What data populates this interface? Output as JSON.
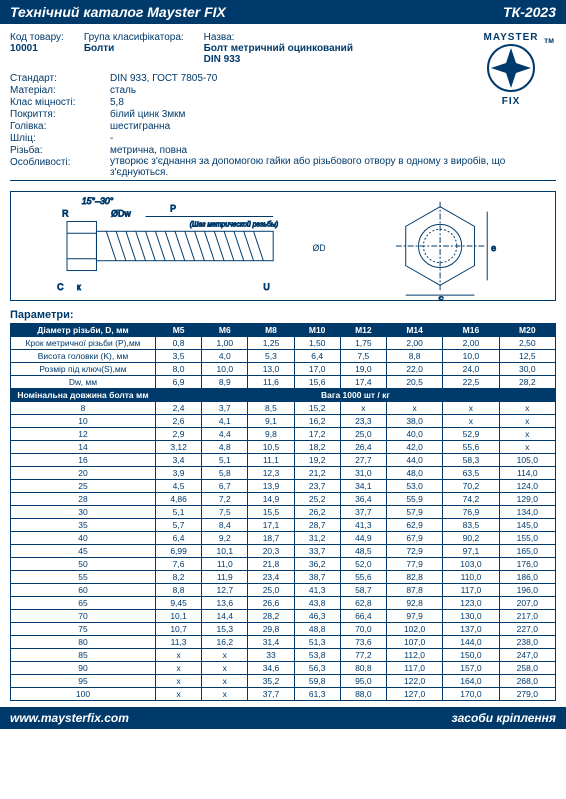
{
  "header": {
    "left": "Технічний каталог Mayster FIX",
    "right": "ТК-2023"
  },
  "info": {
    "code_label": "Код товару:",
    "code": "10001",
    "group_label": "Група класифікатора:",
    "group": "Болти",
    "name_label": "Назва:",
    "name1": "Болт метричний оцинкований",
    "name2": "DIN 933"
  },
  "specs": [
    {
      "label": "Стандарт:",
      "value": "DIN 933, ГОСТ 7805-70"
    },
    {
      "label": "Матеріал:",
      "value": "сталь"
    },
    {
      "label": "Клас міцності:",
      "value": "5,8"
    },
    {
      "label": "Покриття:",
      "value": "білий цинк 3мкм"
    },
    {
      "label": "Голівка:",
      "value": "шестигранна"
    },
    {
      "label": "Шліц:",
      "value": "-"
    },
    {
      "label": "Різьба:",
      "value": "метрична, повна"
    },
    {
      "label": "Особливості:",
      "value": "утворює з'єднання за допомогою гайки або різьбового отвору в одному з виробів, що з'єднуються."
    }
  ],
  "logo": {
    "top": "MAYSTER",
    "bottom": "FIX",
    "tm": "тм"
  },
  "diagram": {
    "angle": "15°–30°",
    "thread_note": "(Шаг метрической резьбы)"
  },
  "params_title": "Параметри:",
  "table": {
    "header": [
      "Діаметр різьби, D, мм",
      "M5",
      "M6",
      "M8",
      "M10",
      "M12",
      "M14",
      "M16",
      "M20"
    ],
    "param_rows": [
      [
        "Крок метричної різьби (P),мм",
        "0,8",
        "1,00",
        "1,25",
        "1,50",
        "1,75",
        "2,00",
        "2,00",
        "2,50"
      ],
      [
        "Висота головки (K), мм",
        "3,5",
        "4,0",
        "5,3",
        "6,4",
        "7,5",
        "8,8",
        "10,0",
        "12,5"
      ],
      [
        "Розмір під ключ(S),мм",
        "8,0",
        "10,0",
        "13,0",
        "17,0",
        "19,0",
        "22,0",
        "24,0",
        "30,0"
      ],
      [
        "Dw, мм",
        "6,9",
        "8,9",
        "11,6",
        "15,6",
        "17,4",
        "20,5",
        "22,5",
        "28,2"
      ]
    ],
    "weight_header": [
      "Номінальна довжина болта мм",
      "Вага 1000 шт / кг"
    ],
    "weight_rows": [
      [
        "8",
        "2,4",
        "3,7",
        "8,5",
        "15,2",
        "x",
        "x",
        "x",
        "x"
      ],
      [
        "10",
        "2,6",
        "4,1",
        "9,1",
        "16,2",
        "23,3",
        "38,0",
        "x",
        "x"
      ],
      [
        "12",
        "2,9",
        "4,4",
        "9,8",
        "17,2",
        "25,0",
        "40,0",
        "52,9",
        "x"
      ],
      [
        "14",
        "3,12",
        "4,8",
        "10,5",
        "18,2",
        "26,4",
        "42,0",
        "55,6",
        "x"
      ],
      [
        "16",
        "3,4",
        "5,1",
        "11,1",
        "19,2",
        "27,7",
        "44,0",
        "58,3",
        "105,0"
      ],
      [
        "20",
        "3,9",
        "5,8",
        "12,3",
        "21,2",
        "31,0",
        "48,0",
        "63,5",
        "114,0"
      ],
      [
        "25",
        "4,5",
        "6,7",
        "13,9",
        "23,7",
        "34,1",
        "53,0",
        "70,2",
        "124,0"
      ],
      [
        "28",
        "4,86",
        "7,2",
        "14,9",
        "25,2",
        "36,4",
        "55,9",
        "74,2",
        "129,0"
      ],
      [
        "30",
        "5,1",
        "7,5",
        "15,5",
        "26,2",
        "37,7",
        "57,9",
        "76,9",
        "134,0"
      ],
      [
        "35",
        "5,7",
        "8,4",
        "17,1",
        "28,7",
        "41,3",
        "62,9",
        "83,5",
        "145,0"
      ],
      [
        "40",
        "6,4",
        "9,2",
        "18,7",
        "31,2",
        "44,9",
        "67,9",
        "90,2",
        "155,0"
      ],
      [
        "45",
        "6,99",
        "10,1",
        "20,3",
        "33,7",
        "48,5",
        "72,9",
        "97,1",
        "165,0"
      ],
      [
        "50",
        "7,6",
        "11,0",
        "21,8",
        "36,2",
        "52,0",
        "77,9",
        "103,0",
        "176,0"
      ],
      [
        "55",
        "8,2",
        "11,9",
        "23,4",
        "38,7",
        "55,6",
        "82,8",
        "110,0",
        "186,0"
      ],
      [
        "60",
        "8,8",
        "12,7",
        "25,0",
        "41,3",
        "58,7",
        "87,8",
        "117,0",
        "196,0"
      ],
      [
        "65",
        "9,45",
        "13,6",
        "26,6",
        "43,8",
        "62,8",
        "92,8",
        "123,0",
        "207,0"
      ],
      [
        "70",
        "10,1",
        "14,4",
        "28,2",
        "46,3",
        "66,4",
        "97,9",
        "130,0",
        "217,0"
      ],
      [
        "75",
        "10,7",
        "15,3",
        "29,8",
        "48,8",
        "70,0",
        "102,0",
        "137,0",
        "227,0"
      ],
      [
        "80",
        "11,3",
        "16,2",
        "31,4",
        "51,3",
        "73,6",
        "107,0",
        "144,0",
        "238,0"
      ],
      [
        "85",
        "x",
        "x",
        "33",
        "53,8",
        "77,2",
        "112,0",
        "150,0",
        "247,0"
      ],
      [
        "90",
        "x",
        "x",
        "34,6",
        "56,3",
        "80,8",
        "117,0",
        "157,0",
        "258,0"
      ],
      [
        "95",
        "x",
        "x",
        "35,2",
        "59,8",
        "95,0",
        "122,0",
        "164,0",
        "268,0"
      ],
      [
        "100",
        "x",
        "x",
        "37,7",
        "61,3",
        "88,0",
        "127,0",
        "170,0",
        "279,0"
      ]
    ]
  },
  "footer": {
    "left": "www.maysterfix.com",
    "right": "засоби кріплення"
  }
}
